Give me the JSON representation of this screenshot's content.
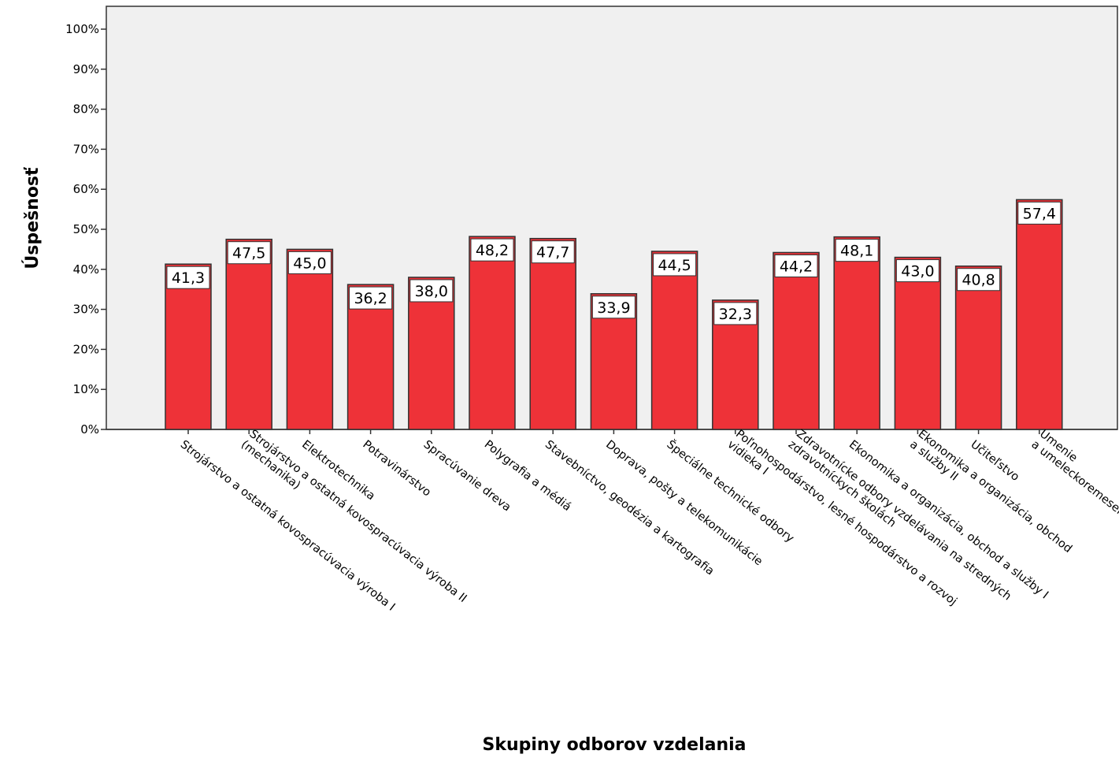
{
  "chart_data": {
    "type": "bar",
    "xlabel": "Skupiny odborov vzdelania",
    "ylabel": "Úspešnosť",
    "ylim": [
      0,
      100
    ],
    "yticks": [
      "0%",
      "10%",
      "20%",
      "30%",
      "40%",
      "50%",
      "60%",
      "70%",
      "80%",
      "90%",
      "100%"
    ],
    "grid": false,
    "bar_color": "#ee3238",
    "plot_background": "#f0f0f0",
    "categories": [
      [
        "Strojárstvo a ostatná kovospracúvacia výroba I"
      ],
      [
        "Strojárstvo a ostatná kovospracúvacia výroba II",
        "(mechanika)"
      ],
      [
        "Elektrotechnika"
      ],
      [
        "Potravinárstvo"
      ],
      [
        "Spracúvanie dreva"
      ],
      [
        "Polygrafia a médiá"
      ],
      [
        "Stavebníctvo, geodézia a kartografia"
      ],
      [
        "Doprava, pošty a telekomunikácie"
      ],
      [
        "Špeciálne technické odbory"
      ],
      [
        "Poľnohospodárstvo, lesné hospodárstvo a rozvoj",
        "vidieka I"
      ],
      [
        "Zdravotnícke odbory vzdelávania na stredných",
        "zdravotníckych školách"
      ],
      [
        "Ekonomika a organizácia, obchod a služby I"
      ],
      [
        "Ekonomika a organizácia, obchod",
        "a služby II"
      ],
      [
        "Učiteľstvo"
      ],
      [
        "Umenie",
        "a umeleckoremeselná tvorba I"
      ]
    ],
    "values": [
      41.3,
      47.5,
      45.0,
      36.2,
      38.0,
      48.2,
      47.7,
      33.9,
      44.5,
      32.3,
      44.2,
      48.1,
      43.0,
      40.8,
      57.4
    ],
    "data_labels": [
      "41,3",
      "47,5",
      "45,0",
      "36,2",
      "38,0",
      "48,2",
      "47,7",
      "33,9",
      "44,5",
      "32,3",
      "44,2",
      "48,1",
      "43,0",
      "40,8",
      "57,4"
    ]
  }
}
